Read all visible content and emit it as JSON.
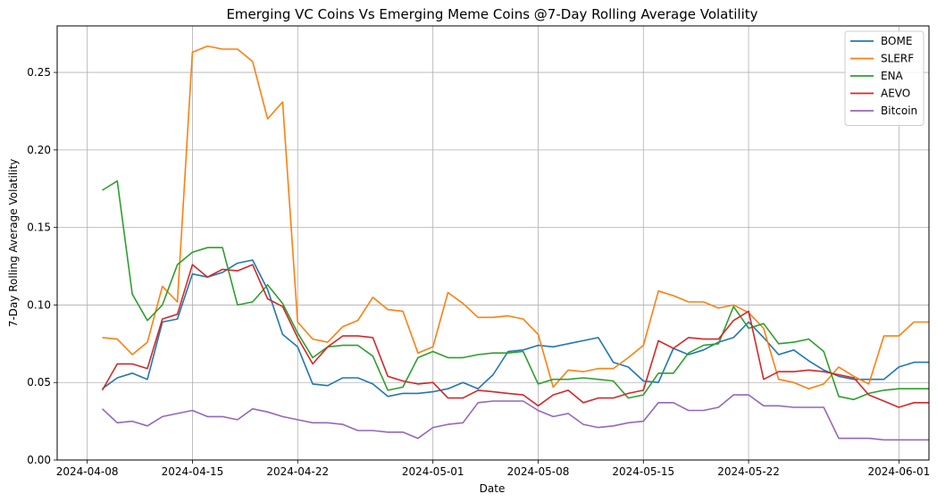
{
  "chart_data": {
    "type": "line",
    "title": "Emerging VC Coins Vs Emerging Meme Coins @7-Day Rolling Average Volatility",
    "xlabel": "Date",
    "ylabel": "7-Day Rolling Average Volatility",
    "x_start": "2024-04-09",
    "xlim": [
      "2024-04-06",
      "2024-06-03"
    ],
    "ylim": [
      0.0,
      0.28
    ],
    "x_ticks": [
      "2024-04-08",
      "2024-04-15",
      "2024-04-22",
      "2024-05-01",
      "2024-05-08",
      "2024-05-15",
      "2024-05-22",
      "2024-06-01"
    ],
    "y_ticks": [
      0.0,
      0.05,
      0.1,
      0.15,
      0.2,
      0.25
    ],
    "y_tick_labels": [
      "0.00",
      "0.05",
      "0.10",
      "0.15",
      "0.20",
      "0.25"
    ],
    "grid": true,
    "legend_position": "top-right",
    "series": [
      {
        "name": "BOME",
        "color": "#1f77b4",
        "values": [
          0.046,
          0.053,
          0.056,
          0.052,
          0.089,
          0.091,
          0.12,
          0.118,
          0.121,
          0.127,
          0.129,
          0.11,
          0.081,
          0.073,
          0.049,
          0.048,
          0.053,
          0.053,
          0.049,
          0.041,
          0.043,
          0.043,
          0.044,
          0.046,
          0.05,
          0.046,
          0.055,
          0.07,
          0.071,
          0.074,
          0.073,
          0.075,
          0.077,
          0.079,
          0.063,
          0.06,
          0.051,
          0.05,
          0.072,
          0.068,
          0.071,
          0.076,
          0.079,
          0.089,
          0.079,
          0.068,
          0.071,
          0.064,
          0.058,
          0.054,
          0.052,
          0.052,
          0.052,
          0.06,
          0.063,
          0.063
        ]
      },
      {
        "name": "SLERF",
        "color": "#ff7f0e",
        "values": [
          0.079,
          0.078,
          0.068,
          0.076,
          0.112,
          0.102,
          0.263,
          0.267,
          0.265,
          0.265,
          0.257,
          0.22,
          0.231,
          0.089,
          0.078,
          0.076,
          0.086,
          0.09,
          0.105,
          0.097,
          0.096,
          0.069,
          0.073,
          0.108,
          0.101,
          0.092,
          0.092,
          0.093,
          0.091,
          0.081,
          0.047,
          0.058,
          0.057,
          0.059,
          0.059,
          0.066,
          0.074,
          0.109,
          0.106,
          0.102,
          0.102,
          0.098,
          0.1,
          0.095,
          0.085,
          0.052,
          0.05,
          0.046,
          0.049,
          0.06,
          0.054,
          0.049,
          0.08,
          0.08,
          0.089,
          0.089
        ]
      },
      {
        "name": "ENA",
        "color": "#2ca02c",
        "values": [
          0.174,
          0.18,
          0.107,
          0.09,
          0.1,
          0.126,
          0.134,
          0.137,
          0.137,
          0.1,
          0.102,
          0.113,
          0.101,
          0.082,
          0.066,
          0.073,
          0.074,
          0.074,
          0.067,
          0.045,
          0.047,
          0.066,
          0.07,
          0.066,
          0.066,
          0.068,
          0.069,
          0.069,
          0.07,
          0.049,
          0.052,
          0.052,
          0.053,
          0.052,
          0.051,
          0.04,
          0.042,
          0.056,
          0.056,
          0.069,
          0.074,
          0.075,
          0.099,
          0.085,
          0.088,
          0.075,
          0.076,
          0.078,
          0.07,
          0.041,
          0.039,
          0.043,
          0.045,
          0.046,
          0.046,
          0.046
        ]
      },
      {
        "name": "AEVO",
        "color": "#d62728",
        "values": [
          0.045,
          0.062,
          0.062,
          0.059,
          0.091,
          0.094,
          0.126,
          0.118,
          0.123,
          0.122,
          0.126,
          0.104,
          0.099,
          0.079,
          0.062,
          0.073,
          0.08,
          0.08,
          0.079,
          0.054,
          0.051,
          0.049,
          0.05,
          0.04,
          0.04,
          0.045,
          0.044,
          0.043,
          0.042,
          0.035,
          0.042,
          0.045,
          0.037,
          0.04,
          0.04,
          0.043,
          0.045,
          0.077,
          0.072,
          0.079,
          0.078,
          0.078,
          0.09,
          0.096,
          0.052,
          0.057,
          0.057,
          0.058,
          0.057,
          0.055,
          0.053,
          0.042,
          0.038,
          0.034,
          0.037,
          0.037
        ]
      },
      {
        "name": "Bitcoin",
        "color": "#9467bd",
        "values": [
          0.033,
          0.024,
          0.025,
          0.022,
          0.028,
          0.03,
          0.032,
          0.028,
          0.028,
          0.026,
          0.033,
          0.031,
          0.028,
          0.026,
          0.024,
          0.024,
          0.023,
          0.019,
          0.019,
          0.018,
          0.018,
          0.014,
          0.021,
          0.023,
          0.024,
          0.037,
          0.038,
          0.038,
          0.038,
          0.032,
          0.028,
          0.03,
          0.023,
          0.021,
          0.022,
          0.024,
          0.025,
          0.037,
          0.037,
          0.032,
          0.032,
          0.034,
          0.042,
          0.042,
          0.035,
          0.035,
          0.034,
          0.034,
          0.034,
          0.014,
          0.014,
          0.014,
          0.013,
          0.013,
          0.013,
          0.013
        ]
      }
    ]
  }
}
